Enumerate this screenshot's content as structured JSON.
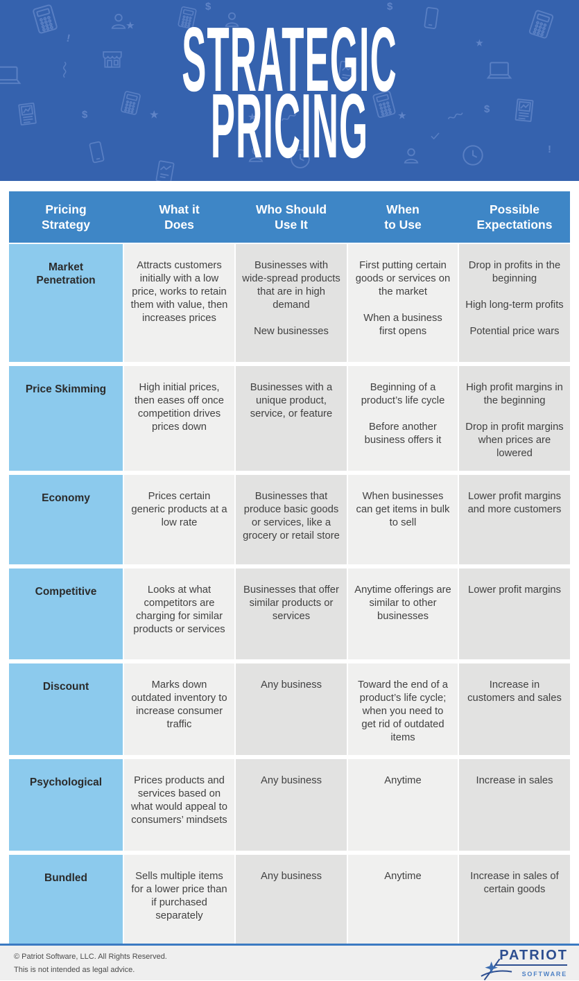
{
  "banner": {
    "title_lines": [
      "STRATEGIC",
      "PRICING"
    ],
    "glyphs": {
      "dollar": "$",
      "star": "★",
      "exclamation": "!"
    },
    "background_icons": [
      "calculator-icon",
      "person-icon",
      "store-icon",
      "laptop-icon",
      "phone-icon",
      "tablet-chart-icon",
      "document-chart-icon",
      "clock-icon",
      "star-icon",
      "dollar-icon",
      "squiggle-icon",
      "exclamation-icon",
      "check-icon"
    ]
  },
  "table": {
    "columns": [
      "Pricing\nStrategy",
      "What it\nDoes",
      "Who Should\nUse It",
      "When\nto Use",
      "Possible\nExpectations"
    ],
    "rows": [
      {
        "strategy": "Market\nPenetration",
        "what_it_does": [
          "Attracts customers initially with a low price, works to retain them with value, then increases prices"
        ],
        "who_should_use_it": [
          "Businesses with wide-spread products that are in high demand",
          "New businesses"
        ],
        "when_to_use": [
          "First putting certain goods or services on the market",
          "When a business first opens"
        ],
        "possible_expectations": [
          "Drop in profits in the beginning",
          "High long-term profits",
          "Potential price wars"
        ]
      },
      {
        "strategy": "Price Skimming",
        "what_it_does": [
          "High initial prices, then eases off once competition drives prices down"
        ],
        "who_should_use_it": [
          "Businesses with a unique product, service, or feature"
        ],
        "when_to_use": [
          "Beginning of a product’s life cycle",
          "Before another business offers it"
        ],
        "possible_expectations": [
          "High profit margins in the beginning",
          "Drop in profit margins when prices are lowered"
        ]
      },
      {
        "strategy": "Economy",
        "what_it_does": [
          "Prices certain generic products at a low rate"
        ],
        "who_should_use_it": [
          "Businesses that produce basic goods or services, like a grocery or retail store"
        ],
        "when_to_use": [
          "When businesses can get items in bulk to sell"
        ],
        "possible_expectations": [
          "Lower profit margins and more customers"
        ]
      },
      {
        "strategy": "Competitive",
        "what_it_does": [
          "Looks at what competitors are charging for similar products or services"
        ],
        "who_should_use_it": [
          "Businesses that offer similar products or services"
        ],
        "when_to_use": [
          "Anytime offerings are similar to other businesses"
        ],
        "possible_expectations": [
          "Lower profit margins"
        ]
      },
      {
        "strategy": "Discount",
        "what_it_does": [
          "Marks down outdated inventory to increase consumer traffic"
        ],
        "who_should_use_it": [
          "Any business"
        ],
        "when_to_use": [
          "Toward the end of a product’s life cycle; when you need to get rid of outdated items"
        ],
        "possible_expectations": [
          "Increase in customers and sales"
        ]
      },
      {
        "strategy": "Psychological",
        "what_it_does": [
          "Prices products and services based on what would appeal to consumers’ mindsets"
        ],
        "who_should_use_it": [
          "Any business"
        ],
        "when_to_use": [
          "Anytime"
        ],
        "possible_expectations": [
          "Increase in sales"
        ]
      },
      {
        "strategy": "Bundled",
        "what_it_does": [
          "Sells multiple items for a lower price than if purchased separately"
        ],
        "who_should_use_it": [
          "Any business"
        ],
        "when_to_use": [
          "Anytime"
        ],
        "possible_expectations": [
          "Increase in sales of certain goods"
        ]
      }
    ]
  },
  "footer": {
    "copyright": "© Patriot Software, LLC. All Rights Reserved.",
    "disclaimer": "This is not intended as legal advice.",
    "logo": {
      "top": "PATRIOT",
      "bottom": "SOFTWARE"
    }
  },
  "colors": {
    "banner_bg": "#3562ae",
    "icon_stroke": "#7d9cd8",
    "header_bg": "#3e86c6",
    "strategy_bg": "#8ccaed",
    "col_light": "#f0f0ef",
    "col_dark": "#e2e2e1",
    "body_text": "#414141",
    "footer_bg": "#efefef",
    "footer_rule": "#3b7ac2",
    "logo_navy": "#2d4e90",
    "logo_blue": "#4d80c4"
  }
}
